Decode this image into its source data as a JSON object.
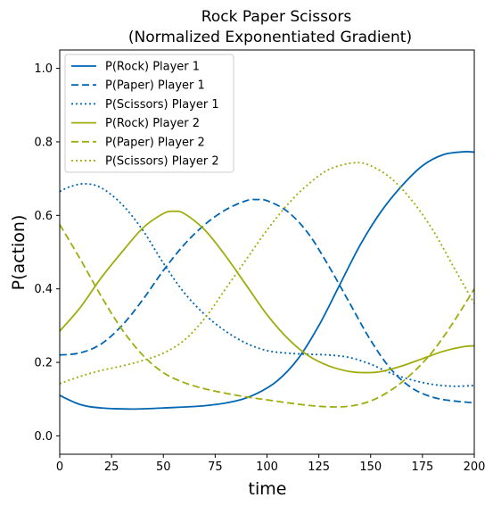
{
  "chart_data": {
    "type": "line",
    "title": "Rock Paper Scissors",
    "subtitle": "(Normalized Exponentiated Gradient)",
    "xlabel": "time",
    "ylabel": "P(action)",
    "xlim": [
      0,
      200
    ],
    "ylim": [
      -0.05,
      1.05
    ],
    "x_ticks": [
      0,
      25,
      50,
      75,
      100,
      125,
      150,
      175,
      200
    ],
    "y_ticks": [
      0.0,
      0.2,
      0.4,
      0.6,
      0.8,
      1.0
    ],
    "x_tick_labels": [
      "0",
      "25",
      "50",
      "75",
      "100",
      "125",
      "150",
      "175",
      "200"
    ],
    "y_tick_labels": [
      "0.0",
      "0.2",
      "0.4",
      "0.6",
      "0.8",
      "1.0"
    ],
    "grid": false,
    "legend_position": "top-left",
    "series": [
      {
        "name": "P(Rock) Player 1",
        "color": "#0066b2",
        "style": "solid",
        "x": [
          0,
          10,
          20,
          35,
          50,
          70,
          85,
          95,
          105,
          115,
          125,
          135,
          145,
          155,
          165,
          175,
          185,
          195,
          200
        ],
        "values": [
          0.11,
          0.085,
          0.076,
          0.073,
          0.076,
          0.082,
          0.095,
          0.115,
          0.15,
          0.21,
          0.3,
          0.41,
          0.52,
          0.61,
          0.68,
          0.735,
          0.765,
          0.773,
          0.772
        ]
      },
      {
        "name": "P(Paper) Player 1",
        "color": "#0066b2",
        "style": "dashed",
        "x": [
          0,
          10,
          20,
          30,
          40,
          50,
          60,
          70,
          80,
          90,
          95,
          100,
          110,
          120,
          130,
          140,
          150,
          160,
          170,
          180,
          190,
          200
        ],
        "values": [
          0.22,
          0.226,
          0.25,
          0.3,
          0.37,
          0.45,
          0.52,
          0.575,
          0.615,
          0.64,
          0.643,
          0.64,
          0.61,
          0.55,
          0.46,
          0.36,
          0.26,
          0.18,
          0.13,
          0.105,
          0.095,
          0.09
        ]
      },
      {
        "name": "P(Scissors) Player 1",
        "color": "#0066b2",
        "style": "dotted",
        "x": [
          0,
          5,
          12,
          20,
          30,
          40,
          50,
          60,
          70,
          80,
          90,
          100,
          110,
          120,
          130,
          140,
          150,
          160,
          170,
          180,
          190,
          200
        ],
        "values": [
          0.665,
          0.678,
          0.686,
          0.675,
          0.63,
          0.56,
          0.47,
          0.39,
          0.33,
          0.285,
          0.252,
          0.232,
          0.225,
          0.222,
          0.22,
          0.213,
          0.195,
          0.17,
          0.152,
          0.14,
          0.135,
          0.137
        ]
      },
      {
        "name": "P(Rock) Player 2",
        "color": "#9ead0b",
        "style": "solid",
        "x": [
          0,
          10,
          20,
          30,
          40,
          50,
          55,
          60,
          70,
          80,
          90,
          100,
          110,
          120,
          130,
          140,
          148,
          155,
          165,
          175,
          185,
          195,
          200
        ],
        "values": [
          0.285,
          0.35,
          0.43,
          0.5,
          0.565,
          0.605,
          0.611,
          0.605,
          0.56,
          0.49,
          0.41,
          0.33,
          0.265,
          0.218,
          0.19,
          0.175,
          0.172,
          0.175,
          0.19,
          0.21,
          0.23,
          0.243,
          0.245
        ]
      },
      {
        "name": "P(Paper) Player 2",
        "color": "#9ead0b",
        "style": "dashed",
        "x": [
          0,
          10,
          20,
          30,
          40,
          50,
          60,
          70,
          80,
          90,
          100,
          110,
          120,
          130,
          140,
          150,
          160,
          170,
          180,
          190,
          200
        ],
        "values": [
          0.575,
          0.48,
          0.38,
          0.29,
          0.22,
          0.172,
          0.145,
          0.128,
          0.116,
          0.106,
          0.098,
          0.09,
          0.083,
          0.079,
          0.081,
          0.095,
          0.125,
          0.17,
          0.23,
          0.31,
          0.4
        ]
      },
      {
        "name": "P(Scissors) Player 2",
        "color": "#9ead0b",
        "style": "dotted",
        "x": [
          0,
          10,
          20,
          30,
          40,
          50,
          60,
          70,
          80,
          90,
          100,
          110,
          120,
          130,
          142,
          150,
          160,
          170,
          180,
          190,
          200
        ],
        "values": [
          0.142,
          0.162,
          0.178,
          0.19,
          0.205,
          0.225,
          0.26,
          0.32,
          0.4,
          0.48,
          0.56,
          0.63,
          0.685,
          0.725,
          0.743,
          0.735,
          0.7,
          0.64,
          0.56,
          0.46,
          0.36
        ]
      }
    ]
  }
}
